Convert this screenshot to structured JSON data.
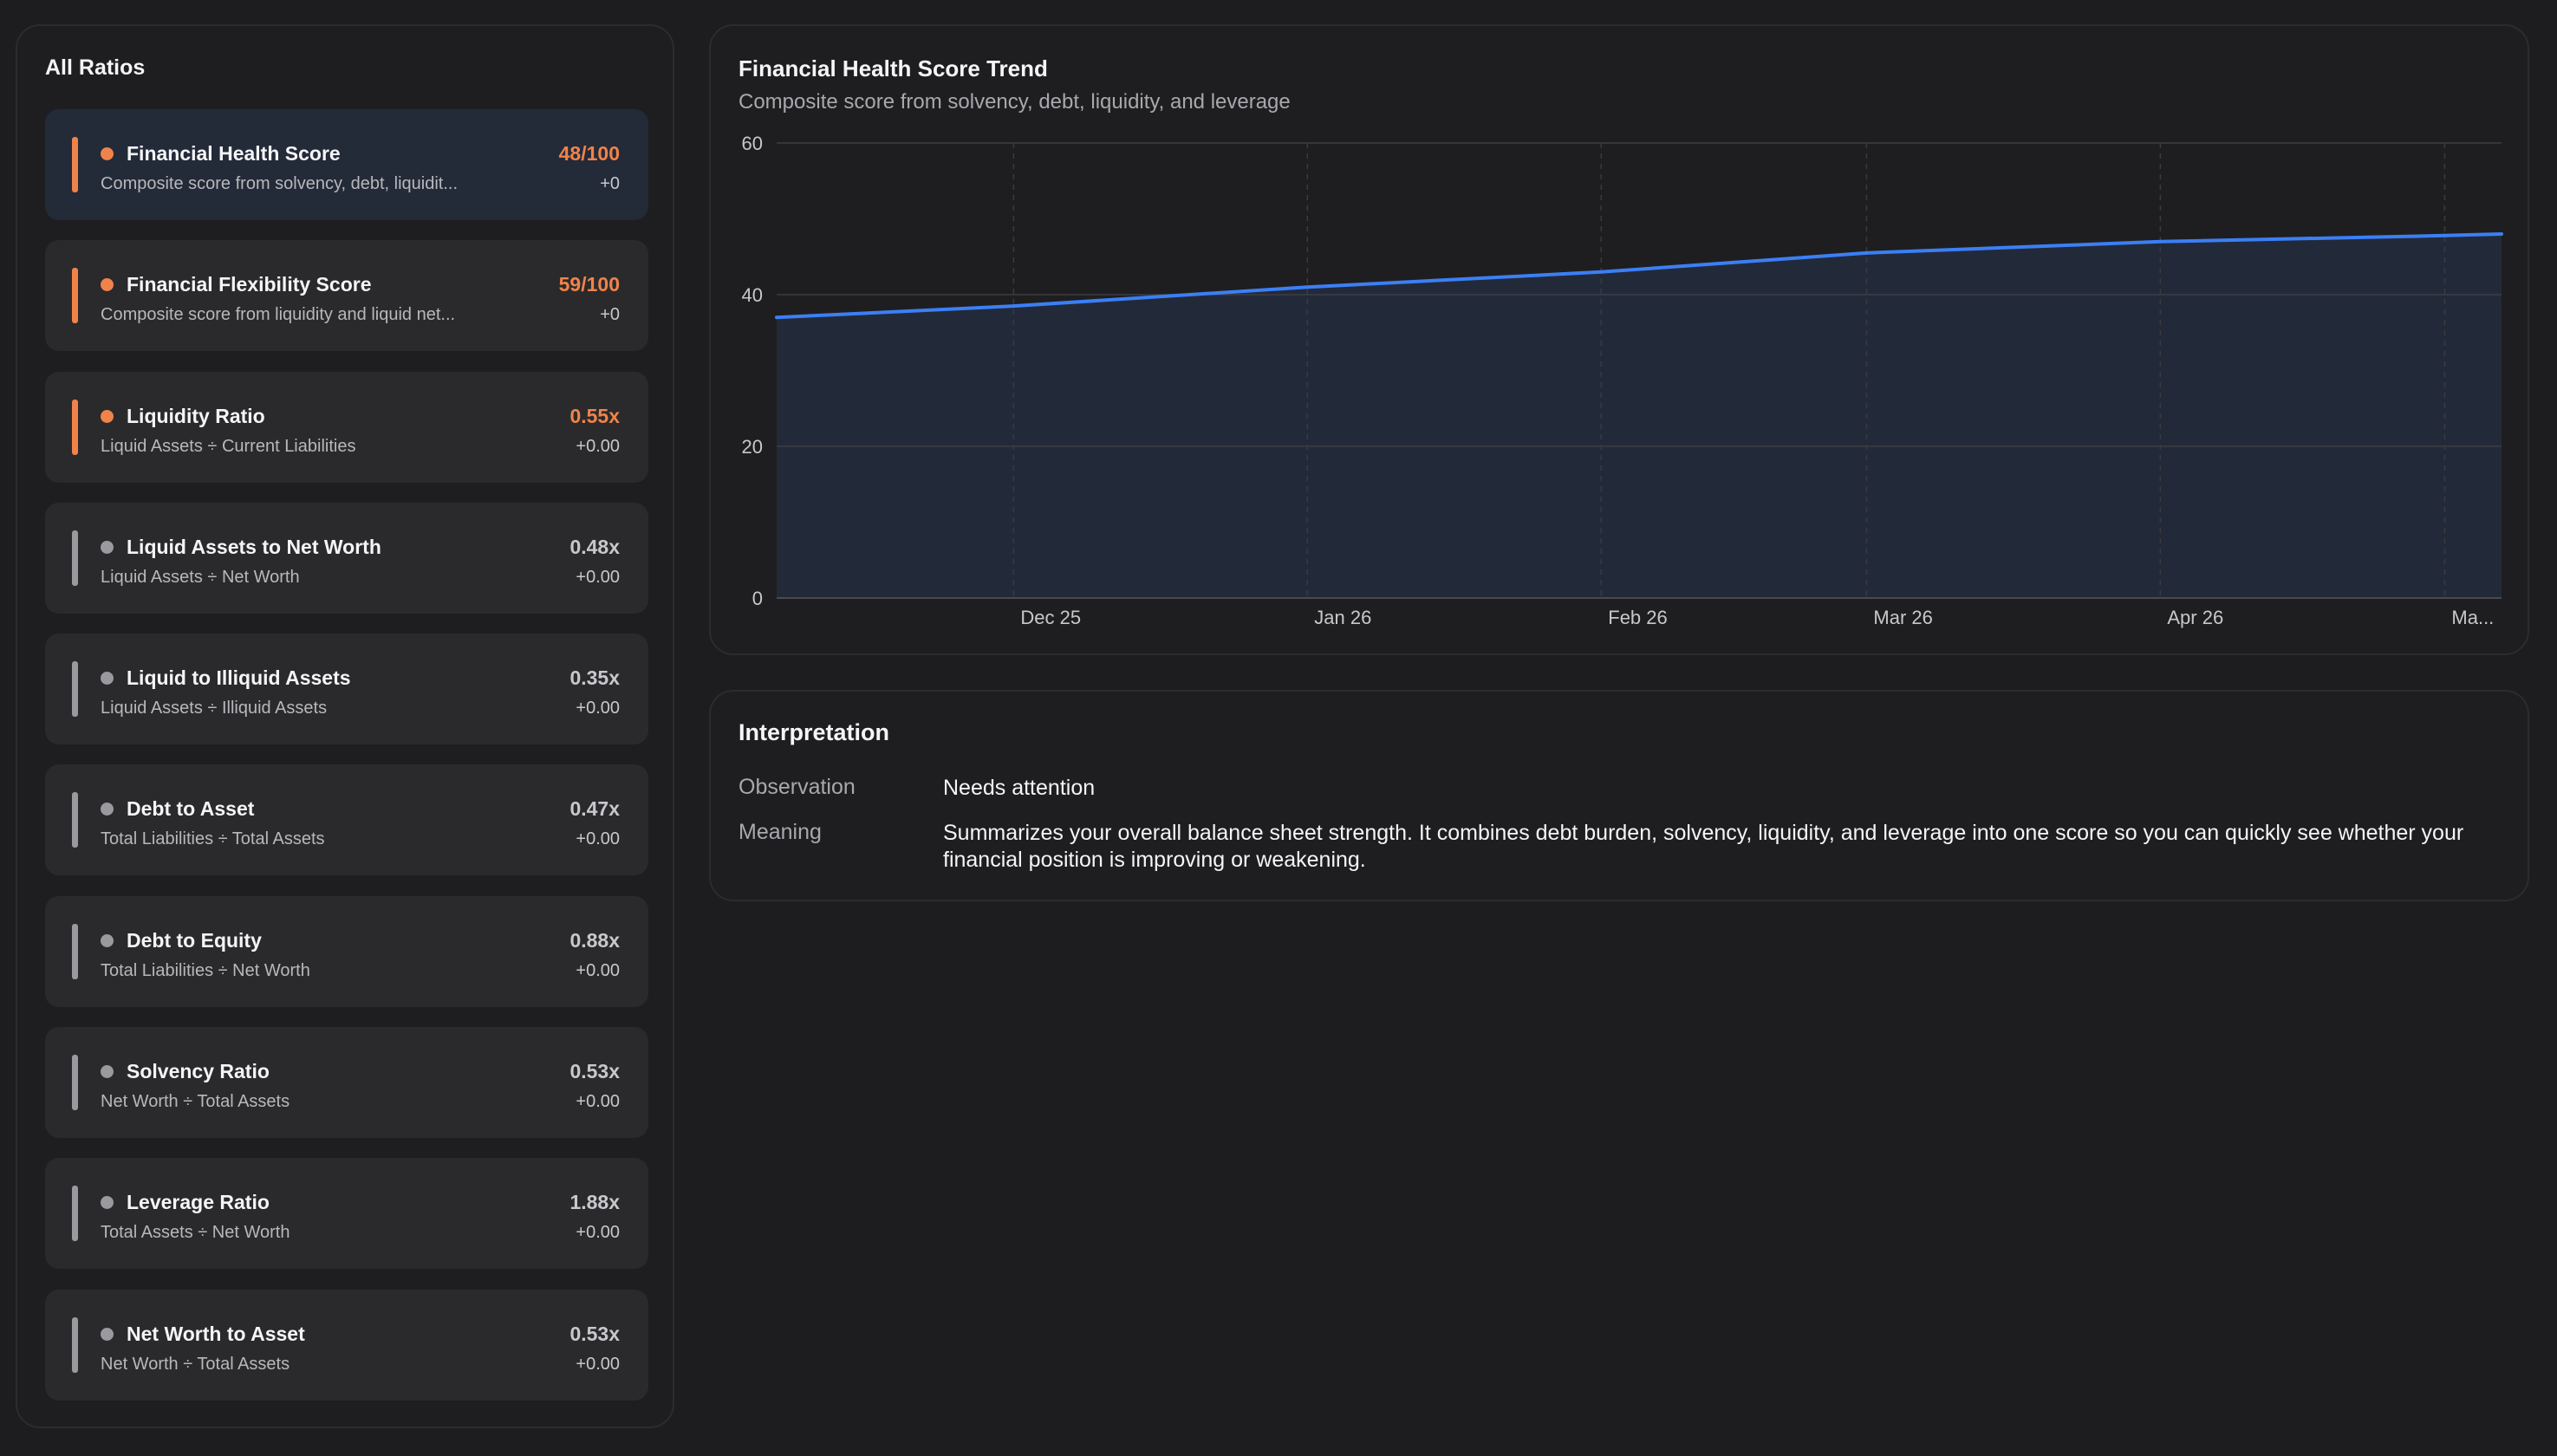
{
  "ratios_panel": {
    "title": "All Ratios",
    "items": [
      {
        "name": "Financial Health Score",
        "formula": "Composite score from solvency, debt, liquidit...",
        "value": "48/100",
        "change": "+0",
        "status": "warning",
        "selected": true
      },
      {
        "name": "Financial Flexibility Score",
        "formula": "Composite score from liquidity and liquid net...",
        "value": "59/100",
        "change": "+0",
        "status": "warning",
        "selected": false
      },
      {
        "name": "Liquidity Ratio",
        "formula": "Liquid Assets ÷ Current Liabilities",
        "value": "0.55x",
        "change": "+0.00",
        "status": "warning",
        "selected": false
      },
      {
        "name": "Liquid Assets to Net Worth",
        "formula": "Liquid Assets ÷ Net Worth",
        "value": "0.48x",
        "change": "+0.00",
        "status": "neutral",
        "selected": false
      },
      {
        "name": "Liquid to Illiquid Assets",
        "formula": "Liquid Assets ÷ Illiquid Assets",
        "value": "0.35x",
        "change": "+0.00",
        "status": "neutral",
        "selected": false
      },
      {
        "name": "Debt to Asset",
        "formula": "Total Liabilities ÷ Total Assets",
        "value": "0.47x",
        "change": "+0.00",
        "status": "neutral",
        "selected": false
      },
      {
        "name": "Debt to Equity",
        "formula": "Total Liabilities ÷ Net Worth",
        "value": "0.88x",
        "change": "+0.00",
        "status": "neutral",
        "selected": false
      },
      {
        "name": "Solvency Ratio",
        "formula": "Net Worth ÷ Total Assets",
        "value": "0.53x",
        "change": "+0.00",
        "status": "neutral",
        "selected": false
      },
      {
        "name": "Leverage Ratio",
        "formula": "Total Assets ÷ Net Worth",
        "value": "1.88x",
        "change": "+0.00",
        "status": "neutral",
        "selected": false
      },
      {
        "name": "Net Worth to Asset",
        "formula": "Net Worth ÷ Total Assets",
        "value": "0.53x",
        "change": "+0.00",
        "status": "neutral",
        "selected": false
      }
    ]
  },
  "colors": {
    "warning": "#f0834a",
    "neutral": "#9a9a9e",
    "line": "#3b7ff5",
    "area": "#222a3a"
  },
  "chart": {
    "title": "Financial Health Score Trend",
    "subtitle": "Composite score from solvency, debt, liquidity, and leverage"
  },
  "chart_data": {
    "type": "area",
    "title": "Financial Health Score Trend",
    "subtitle": "Composite score from solvency, debt, liquidity, and leverage",
    "ylim": [
      0,
      60
    ],
    "y_ticks": [
      0,
      20,
      40,
      60
    ],
    "x_tick_labels": [
      "Dec 25",
      "Jan 26",
      "Feb 26",
      "Mar 26",
      "Apr 26",
      "Ma..."
    ],
    "x_tick_dates": [
      "2025-12-01",
      "2026-01-01",
      "2026-02-01",
      "2026-03-01",
      "2026-04-01",
      "2026-05-01"
    ],
    "grid": true,
    "series": [
      {
        "x": [
          "2025-11-06",
          "2025-12-01",
          "2026-01-01",
          "2026-02-01",
          "2026-03-01",
          "2026-04-01",
          "2026-05-01",
          "2026-05-07"
        ],
        "values": [
          37,
          38.5,
          41,
          43,
          45.5,
          47,
          47.8,
          48
        ]
      }
    ]
  },
  "interpretation": {
    "title": "Interpretation",
    "observation_label": "Observation",
    "observation_value": "Needs attention",
    "meaning_label": "Meaning",
    "meaning_value": "Summarizes your overall balance sheet strength. It combines debt burden, solvency, liquidity, and leverage into one score so you can quickly see whether your financial position is improving or weakening."
  }
}
